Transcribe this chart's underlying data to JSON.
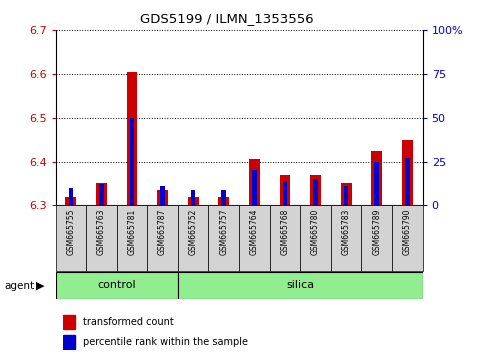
{
  "title": "GDS5199 / ILMN_1353556",
  "samples": [
    "GSM665755",
    "GSM665763",
    "GSM665781",
    "GSM665787",
    "GSM665752",
    "GSM665757",
    "GSM665764",
    "GSM665768",
    "GSM665780",
    "GSM665783",
    "GSM665789",
    "GSM665790"
  ],
  "groups": [
    "control",
    "control",
    "control",
    "control",
    "silica",
    "silica",
    "silica",
    "silica",
    "silica",
    "silica",
    "silica",
    "silica"
  ],
  "transformed_count": [
    6.32,
    6.35,
    6.605,
    6.335,
    6.32,
    6.32,
    6.405,
    6.37,
    6.37,
    6.35,
    6.425,
    6.45
  ],
  "percentile_rank": [
    10,
    12,
    50,
    11,
    9,
    9,
    20,
    14,
    15,
    11,
    25,
    27
  ],
  "base_value": 6.3,
  "ylim": [
    6.3,
    6.7
  ],
  "yticks": [
    6.3,
    6.4,
    6.5,
    6.6,
    6.7
  ],
  "right_yticks": [
    0,
    25,
    50,
    75,
    100
  ],
  "right_ylim": [
    0,
    100
  ],
  "bar_color_red": "#cc0000",
  "bar_color_blue": "#0000cc",
  "group_bg_color": "#90ee90",
  "label_bg_color": "#d3d3d3",
  "agent_label": "agent",
  "legend_items": [
    "transformed count",
    "percentile rank within the sample"
  ],
  "red_bar_width": 0.35,
  "blue_bar_width": 0.15,
  "grid_color": "black",
  "grid_linestyle": "dotted"
}
